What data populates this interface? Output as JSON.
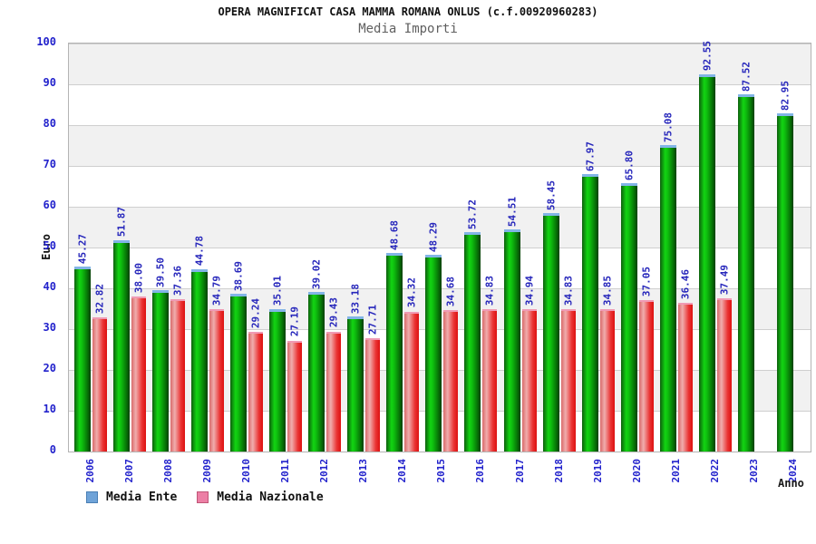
{
  "chart_data": {
    "type": "bar",
    "title": "OPERA MAGNIFICAT CASA MAMMA ROMANA ONLUS (c.f.00920960283)",
    "subtitle": "Media Importi",
    "xlabel": "Anno",
    "ylabel": "Euro",
    "ylim": [
      0,
      100
    ],
    "ytick_step": 10,
    "y_ticks": [
      0,
      10,
      20,
      30,
      40,
      50,
      60,
      70,
      80,
      90,
      100
    ],
    "grid": "horizontal-bands-alternating",
    "legend_position": "bottom-left",
    "value_label_decimals": 2,
    "value_label_rotation": 90,
    "categories": [
      "2006",
      "2007",
      "2008",
      "2009",
      "2010",
      "2011",
      "2012",
      "2013",
      "2014",
      "2015",
      "2016",
      "2017",
      "2018",
      "2019",
      "2020",
      "2021",
      "2022",
      "2023",
      "2024"
    ],
    "series": [
      {
        "name": "Media Ente",
        "values": [
          45.27,
          51.87,
          39.5,
          44.78,
          38.69,
          35.01,
          39.02,
          33.18,
          48.68,
          48.29,
          53.72,
          54.51,
          58.45,
          67.97,
          65.8,
          75.08,
          92.55,
          87.52,
          82.95
        ]
      },
      {
        "name": "Media Nazionale",
        "values": [
          32.82,
          38.0,
          37.36,
          34.79,
          29.24,
          27.19,
          29.43,
          27.71,
          34.32,
          34.68,
          34.83,
          34.94,
          34.83,
          34.85,
          37.05,
          36.46,
          37.49,
          null,
          null
        ]
      }
    ]
  },
  "colors": {
    "axis_text": "#2222cc",
    "value_label": "#2626bb",
    "subtitle": "#606060",
    "grid_line": "#cfcfcf",
    "band_gray": "#f1f1f1",
    "plot_border": "#b4b4b4",
    "bar_green_main": "#12d412",
    "bar_green_dark": "#0d5f0d",
    "bar_green_cap": "#82b4e6",
    "bar_red_main": "#ea3333",
    "bar_red_light": "#f0adad",
    "bar_red_cap": "#f09ab4",
    "legend_ente_fill": "#6fa3d8",
    "legend_ente_border": "#4a7fb5",
    "legend_nazionale_fill": "#ec7fa5",
    "legend_nazionale_border": "#c05577"
  }
}
